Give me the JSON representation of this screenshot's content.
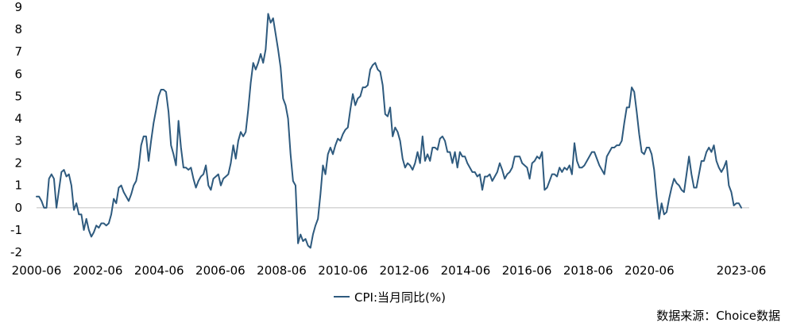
{
  "chart_data": {
    "type": "line",
    "title": "",
    "xlabel": "",
    "ylabel": "",
    "ylim": [
      -2,
      9
    ],
    "yticks": [
      -2,
      -1,
      0,
      1,
      2,
      3,
      4,
      5,
      6,
      7,
      8,
      9
    ],
    "grid": false,
    "legend_position": "bottom-center",
    "line_color": "#2E5A7E",
    "xtick_labels": [
      "2000-06",
      "2002-06",
      "2004-06",
      "2006-06",
      "2008-06",
      "2010-06",
      "2012-06",
      "2014-06",
      "2016-06",
      "2018-06",
      "2020-06",
      "2023-06"
    ],
    "series": [
      {
        "name": "CPI:当月同比(%)",
        "x_start": "2000-06",
        "x_end": "2023-06",
        "values": [
          0.5,
          0.5,
          0.3,
          0.0,
          0.0,
          1.3,
          1.5,
          1.3,
          0.0,
          0.8,
          1.6,
          1.7,
          1.4,
          1.5,
          1.0,
          -0.1,
          0.2,
          -0.3,
          -0.3,
          -1.0,
          -0.5,
          -1.0,
          -1.3,
          -1.1,
          -0.8,
          -0.9,
          -0.7,
          -0.7,
          -0.8,
          -0.7,
          -0.3,
          0.4,
          0.2,
          0.9,
          1.0,
          0.7,
          0.5,
          0.3,
          0.6,
          1.0,
          1.2,
          1.8,
          2.8,
          3.2,
          3.2,
          2.1,
          3.0,
          3.8,
          4.4,
          5.0,
          5.3,
          5.3,
          5.2,
          4.3,
          2.8,
          2.4,
          1.9,
          3.9,
          2.7,
          1.8,
          1.8,
          1.7,
          1.8,
          1.3,
          0.9,
          1.2,
          1.4,
          1.5,
          1.9,
          1.0,
          0.8,
          1.3,
          1.4,
          1.5,
          1.0,
          1.3,
          1.4,
          1.5,
          2.0,
          2.8,
          2.2,
          3.0,
          3.4,
          3.2,
          3.4,
          4.4,
          5.6,
          6.5,
          6.2,
          6.5,
          6.9,
          6.5,
          7.1,
          8.7,
          8.3,
          8.5,
          7.8,
          7.1,
          6.3,
          4.9,
          4.6,
          4.0,
          2.4,
          1.2,
          1.0,
          -1.6,
          -1.2,
          -1.5,
          -1.4,
          -1.7,
          -1.8,
          -1.2,
          -0.8,
          -0.5,
          0.6,
          1.9,
          1.5,
          2.4,
          2.7,
          2.4,
          2.8,
          3.1,
          3.0,
          3.3,
          3.5,
          3.6,
          4.4,
          5.1,
          4.6,
          4.9,
          5.0,
          5.4,
          5.4,
          5.5,
          6.2,
          6.4,
          6.5,
          6.2,
          6.1,
          5.5,
          4.2,
          4.1,
          4.5,
          3.2,
          3.6,
          3.4,
          3.0,
          2.2,
          1.8,
          2.0,
          1.9,
          1.7,
          2.0,
          2.5,
          2.0,
          3.2,
          2.1,
          2.4,
          2.1,
          2.7,
          2.7,
          2.6,
          3.1,
          3.2,
          3.0,
          2.5,
          2.5,
          2.0,
          2.5,
          1.8,
          2.5,
          2.3,
          2.3,
          2.0,
          1.8,
          1.6,
          1.6,
          1.4,
          1.5,
          0.8,
          1.4,
          1.4,
          1.5,
          1.2,
          1.4,
          1.6,
          2.0,
          1.7,
          1.3,
          1.5,
          1.6,
          1.8,
          2.3,
          2.3,
          2.3,
          2.0,
          1.9,
          1.8,
          1.3,
          2.0,
          2.1,
          2.3,
          2.2,
          2.5,
          0.8,
          0.9,
          1.2,
          1.5,
          1.5,
          1.4,
          1.8,
          1.6,
          1.8,
          1.7,
          1.9,
          1.5,
          2.9,
          2.1,
          1.8,
          1.8,
          1.9,
          2.1,
          2.3,
          2.5,
          2.5,
          2.2,
          1.9,
          1.7,
          1.5,
          2.3,
          2.5,
          2.7,
          2.7,
          2.8,
          2.8,
          3.0,
          3.8,
          4.5,
          4.5,
          5.4,
          5.2,
          4.3,
          3.3,
          2.5,
          2.4,
          2.7,
          2.7,
          2.4,
          1.7,
          0.5,
          -0.5,
          0.2,
          -0.3,
          -0.2,
          0.4,
          0.9,
          1.3,
          1.1,
          1.0,
          0.8,
          0.7,
          1.5,
          2.3,
          1.5,
          0.9,
          0.9,
          1.5,
          2.1,
          2.1,
          2.5,
          2.7,
          2.5,
          2.8,
          2.1,
          1.8,
          1.6,
          1.8,
          2.1,
          1.0,
          0.7,
          0.1,
          0.2,
          0.2,
          0.0
        ]
      }
    ]
  },
  "legend": {
    "label": "CPI:当月同比(%)"
  },
  "source": {
    "text": "数据来源：Choice数据"
  }
}
